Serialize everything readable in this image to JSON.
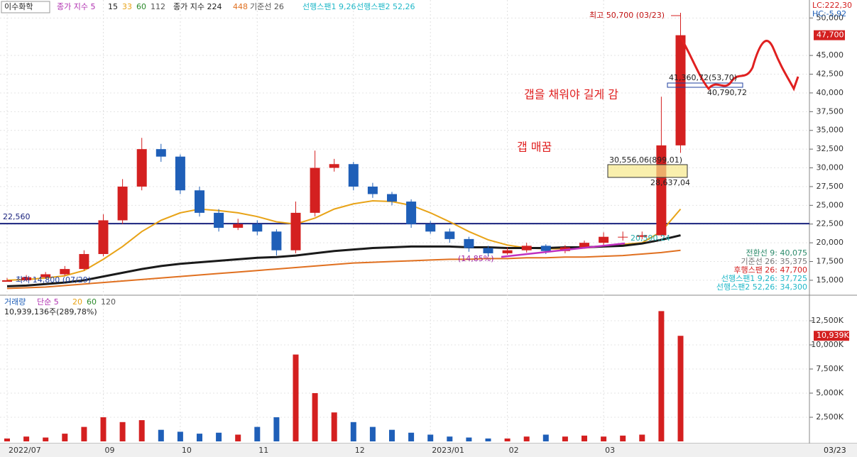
{
  "chart_data": [
    {
      "type": "candlestick",
      "title": "이수화학",
      "indicator_labels": [
        "종가 지수 5",
        "15",
        "33",
        "60",
        "112",
        "종가 지수 224",
        "448",
        "기준선 26",
        "선행스팬1 9,26",
        "선행스팬2 52,26"
      ],
      "corner_labels": [
        "LC:222,30",
        "HC:-5,92"
      ],
      "categories": [
        "2022/07",
        null,
        null,
        null,
        null,
        "09",
        null,
        null,
        null,
        "10",
        null,
        null,
        null,
        "11",
        null,
        null,
        null,
        null,
        "12",
        null,
        null,
        null,
        "2023/01",
        null,
        null,
        null,
        "02",
        null,
        null,
        null,
        null,
        "03",
        null,
        null,
        null,
        null
      ],
      "open": [
        14800,
        15000,
        15400,
        15800,
        16500,
        18500,
        23000,
        27500,
        32500,
        31500,
        27000,
        24000,
        22000,
        22500,
        21500,
        19000,
        24000,
        30000,
        30500,
        27500,
        26500,
        25500,
        22500,
        21500,
        20500,
        19300,
        18600,
        19000,
        19600,
        18900,
        19400,
        20000,
        20800,
        20800,
        21000,
        33000
      ],
      "high": [
        15300,
        15700,
        16100,
        16900,
        19000,
        23800,
        28500,
        34000,
        33200,
        31800,
        27500,
        24500,
        23200,
        23000,
        21800,
        25500,
        32300,
        31200,
        30800,
        28000,
        26800,
        25800,
        22900,
        21900,
        20800,
        19600,
        19400,
        20000,
        19800,
        19700,
        20300,
        21400,
        21500,
        21500,
        39500,
        50700
      ],
      "low": [
        14800,
        14900,
        15200,
        15600,
        16300,
        18200,
        22500,
        27000,
        30800,
        26500,
        23500,
        21500,
        21700,
        21000,
        18300,
        18600,
        23500,
        29500,
        27000,
        26000,
        25000,
        22000,
        21200,
        20000,
        18800,
        18200,
        18400,
        18700,
        18500,
        18600,
        19200,
        19600,
        20300,
        20500,
        20800,
        32000
      ],
      "close": [
        15000,
        15400,
        15800,
        16500,
        18500,
        23000,
        27500,
        32500,
        31500,
        27000,
        24000,
        22000,
        22500,
        21500,
        19000,
        24000,
        30000,
        30500,
        27500,
        26500,
        25500,
        22500,
        21500,
        20500,
        19300,
        18600,
        19000,
        19600,
        18900,
        19400,
        20000,
        20800,
        20800,
        21000,
        33000,
        47700
      ],
      "up_color": "#d42020",
      "down_color": "#1f5fb8",
      "series": [
        {
          "color": "#e8a317",
          "values": [
            15000,
            15100,
            15300,
            15600,
            16300,
            17800,
            19500,
            21500,
            23000,
            24000,
            24500,
            24300,
            24000,
            23500,
            22800,
            22500,
            23300,
            24500,
            25200,
            25600,
            25500,
            25000,
            24000,
            22800,
            21500,
            20400,
            19700,
            19300,
            19200,
            19200,
            19300,
            19500,
            19800,
            20000,
            21500,
            24500
          ]
        },
        {
          "color": "#1a1a1a",
          "values": [
            14200,
            14300,
            14500,
            14700,
            15000,
            15500,
            16000,
            16500,
            16900,
            17200,
            17400,
            17600,
            17800,
            18000,
            18100,
            18300,
            18600,
            18900,
            19100,
            19300,
            19400,
            19500,
            19500,
            19500,
            19400,
            19400,
            19300,
            19300,
            19300,
            19400,
            19400,
            19500,
            19600,
            19900,
            20400,
            21000
          ]
        },
        {
          "color": "#e07020",
          "values": [
            13900,
            14000,
            14100,
            14300,
            14500,
            14700,
            14900,
            15100,
            15300,
            15500,
            15700,
            15900,
            16100,
            16300,
            16500,
            16700,
            16900,
            17100,
            17300,
            17400,
            17500,
            17600,
            17700,
            17800,
            17800,
            17900,
            17900,
            18000,
            18000,
            18100,
            18100,
            18200,
            18300,
            18500,
            18700,
            19000
          ]
        }
      ],
      "hline": {
        "value": 22560,
        "label": "22,560"
      },
      "annotations": [
        "최고 50,700 (03/23)",
        "최저 14,800 (07/29)",
        "갭을 채워야 길게 감",
        "갭 매꿈",
        "41,360,72(53,70)",
        "40,790,72",
        "30,556,06(899,01)",
        "28,637,04",
        "20,590,24",
        "(14,85%)"
      ],
      "ichimoku_labels": [
        "전환선 9: 40,075",
        "기준선 26: 35,375",
        "후행스팬 26: 47,700",
        "선행스팬1 9,26: 37,725",
        "선행스팬2 52,26: 34,300"
      ],
      "current_label": "47,700",
      "ylim": [
        13100,
        52400
      ],
      "yticks": [
        {
          "value": 15000,
          "label": "15,000"
        },
        {
          "value": 17500,
          "label": "17,500"
        },
        {
          "value": 20000,
          "label": "20,000"
        },
        {
          "value": 22500,
          "label": "22,500"
        },
        {
          "value": 25000,
          "label": "25,000"
        },
        {
          "value": 27500,
          "label": "27,500"
        },
        {
          "value": 30000,
          "label": "30,000"
        },
        {
          "value": 32500,
          "label": "32,500"
        },
        {
          "value": 35000,
          "label": "35,000"
        },
        {
          "value": 37500,
          "label": "37,500"
        },
        {
          "value": 40000,
          "label": "40,000"
        },
        {
          "value": 42500,
          "label": "42,500"
        },
        {
          "value": 45000,
          "label": "45,000"
        },
        {
          "value": 50000,
          "label": "50,000"
        }
      ]
    },
    {
      "type": "bar",
      "title": "거래량",
      "indicator_labels": [
        "단순 5",
        "20",
        "60",
        "120"
      ],
      "subtitle": "10,939,136주(289,78%)",
      "values": [
        300,
        500,
        400,
        800,
        1500,
        2500,
        2000,
        2200,
        1200,
        1000,
        800,
        900,
        700,
        1500,
        2500,
        9000,
        5000,
        3000,
        2000,
        1500,
        1200,
        900,
        700,
        500,
        400,
        300,
        300,
        500,
        700,
        500,
        600,
        500,
        600,
        700,
        13500,
        10939
      ],
      "current_label": "10,939K",
      "ylim": [
        0,
        15000
      ],
      "yticks": [
        {
          "value": 2500,
          "label": "2,500K"
        },
        {
          "value": 5000,
          "label": "5,000K"
        },
        {
          "value": 7500,
          "label": "7,500K"
        },
        {
          "value": 10000,
          "label": "10,000K"
        },
        {
          "value": 12500,
          "label": "12,500K"
        }
      ]
    }
  ],
  "last_date_label": "03/23"
}
